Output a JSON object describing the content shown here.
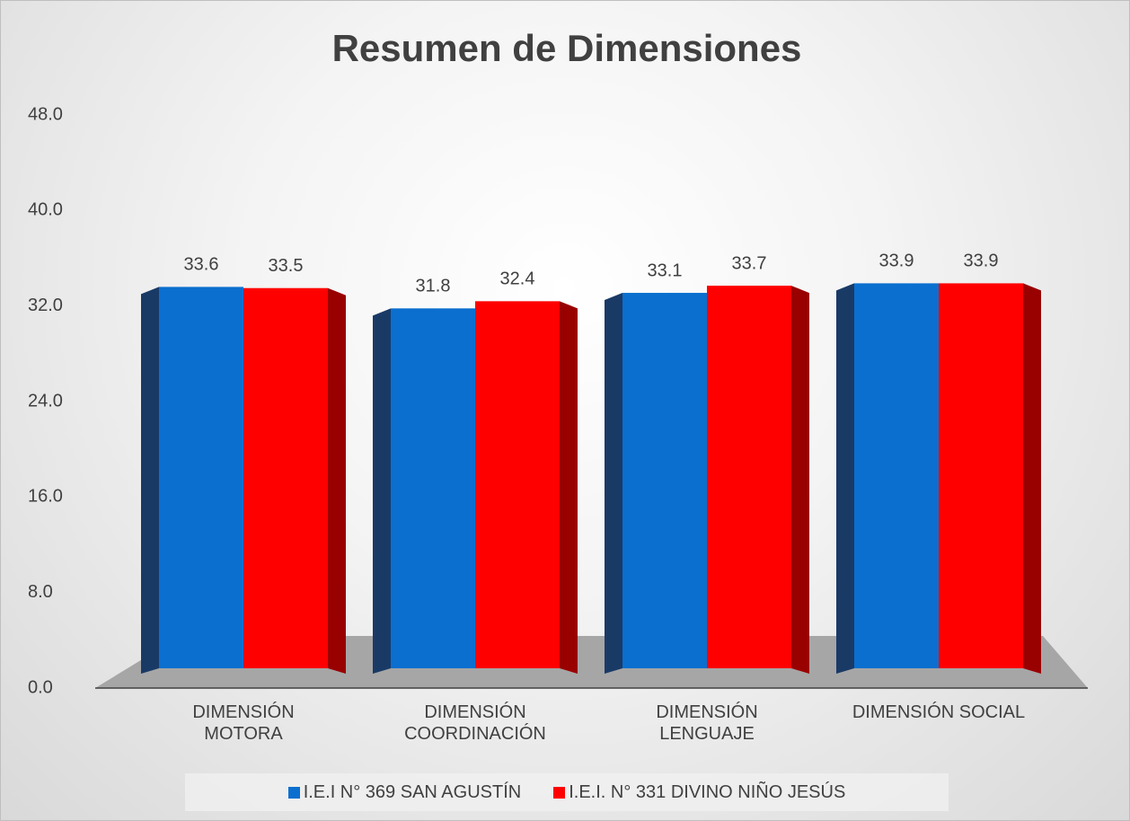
{
  "chart_data": {
    "type": "bar",
    "title": "Resumen de Dimensiones",
    "categories": [
      "DIMENSIÓN\nMOTORA",
      "DIMENSIÓN\nCOORDINACIÓN",
      "DIMENSIÓN\nLENGUAJE",
      "DIMENSIÓN SOCIAL"
    ],
    "series": [
      {
        "name": "I.E.I N° 369 SAN AGUSTÍN",
        "color": "#0a6fcf",
        "values": [
          33.6,
          31.8,
          33.1,
          33.9
        ]
      },
      {
        "name": "I.E.I. N° 331 DIVINO NIÑO JESÚS",
        "color": "#ff0000",
        "values": [
          33.5,
          32.4,
          33.7,
          33.9
        ]
      }
    ],
    "ylim": [
      0,
      48
    ],
    "yticks": [
      {
        "value": 0,
        "label": "0.0"
      },
      {
        "value": 8,
        "label": "8.0"
      },
      {
        "value": 16,
        "label": "16.0"
      },
      {
        "value": 24,
        "label": "24.0"
      },
      {
        "value": 32,
        "label": "32.0"
      },
      {
        "value": 40,
        "label": "40.0"
      },
      {
        "value": 48,
        "label": "48.0"
      }
    ],
    "grid": false,
    "legend": "bottom"
  }
}
